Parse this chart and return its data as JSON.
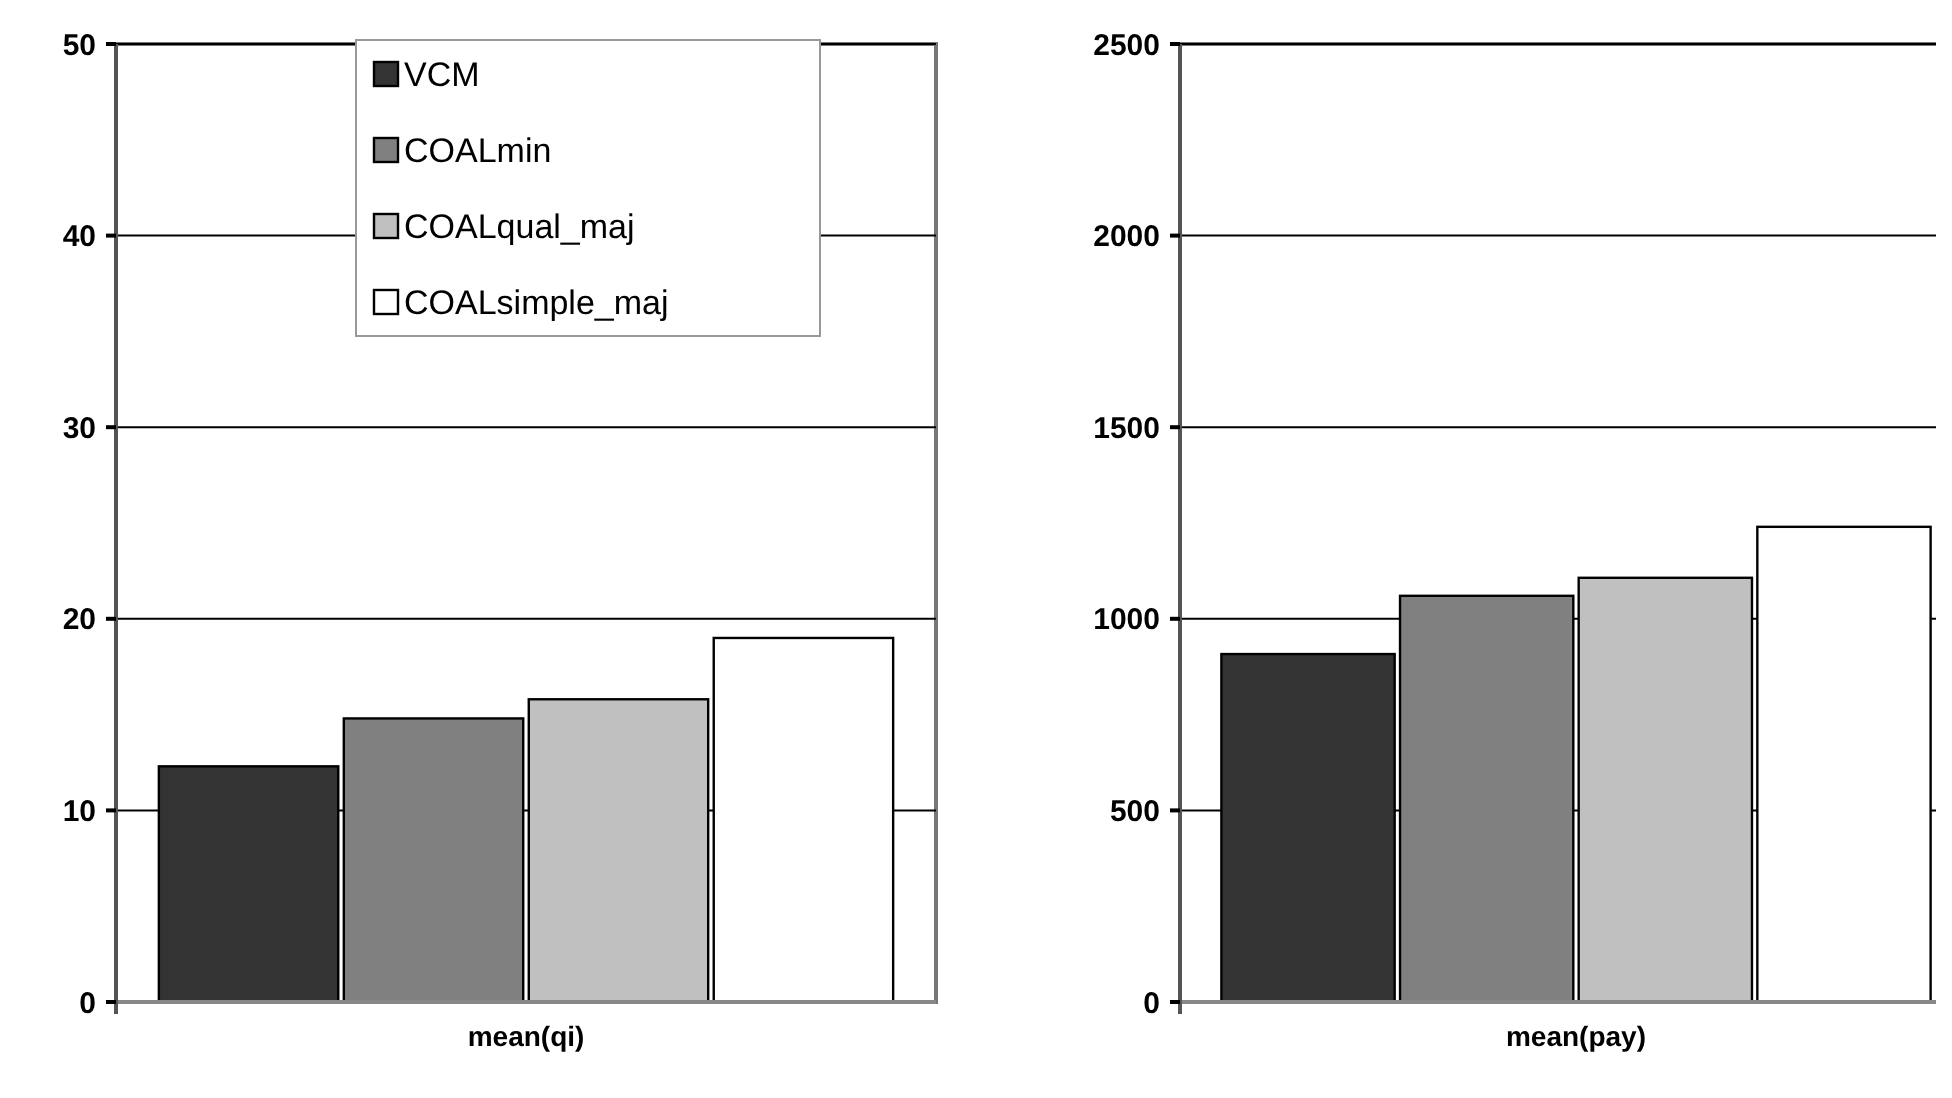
{
  "chart_data": [
    {
      "type": "bar",
      "categories": [
        "mean(qi)"
      ],
      "ylim": [
        0,
        50
      ],
      "yticks": [
        0,
        10,
        20,
        30,
        40,
        50
      ],
      "grid": "y",
      "legend": "top right",
      "series": [
        {
          "name": "VCM",
          "color": "#333333",
          "values": [
            12.3
          ]
        },
        {
          "name": "COALmin",
          "color": "#808080",
          "values": [
            14.8
          ]
        },
        {
          "name": "COALqual_maj",
          "color": "#c0c0c0",
          "values": [
            15.8
          ]
        },
        {
          "name": "COALsimple_maj",
          "color": "#ffffff",
          "values": [
            19.0
          ]
        }
      ]
    },
    {
      "type": "bar",
      "categories": [
        "mean(pay)"
      ],
      "ylim": [
        0,
        2500
      ],
      "yticks": [
        0,
        500,
        1000,
        1500,
        2000,
        2500
      ],
      "grid": "y",
      "series": [
        {
          "color": "#333333",
          "values": [
            908
          ]
        },
        {
          "color": "#808080",
          "values": [
            1060
          ]
        },
        {
          "color": "#c0c0c0",
          "values": [
            1107
          ]
        },
        {
          "color": "#ffffff",
          "values": [
            1240
          ]
        }
      ]
    }
  ]
}
